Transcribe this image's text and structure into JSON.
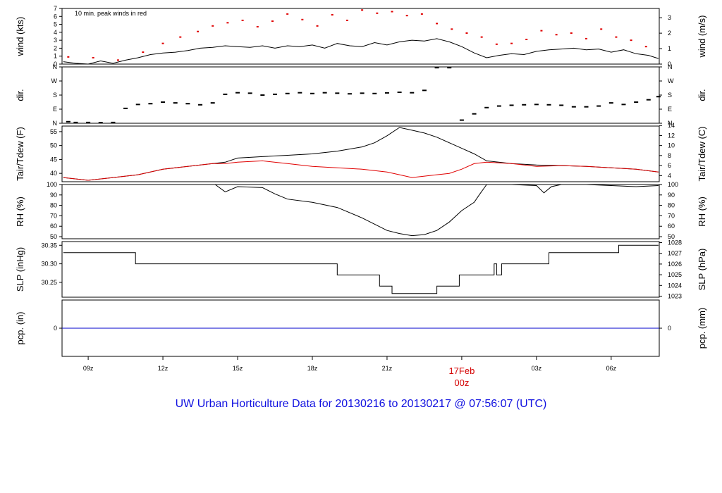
{
  "footer_title": "UW Urban Horticulture Data for 20130216  to  20130217 @ 07:56:07  (UTC)",
  "colors": {
    "line": "#000000",
    "peak": "#e00000",
    "dewpoint": "#e00000",
    "precip": "#0000cc",
    "date": "#d40000",
    "title": "#1010e0"
  },
  "x_axis": {
    "ticks": [
      {
        "label": "09z",
        "hour": 9
      },
      {
        "label": "12z",
        "hour": 12
      },
      {
        "label": "15z",
        "hour": 15
      },
      {
        "label": "18z",
        "hour": 18
      },
      {
        "label": "21z",
        "hour": 21
      },
      {
        "label": "",
        "hour": 24
      },
      {
        "label": "03z",
        "hour": 27
      },
      {
        "label": "06z",
        "hour": 30
      }
    ],
    "date_label": "17Feb",
    "date_sublabel": "00z",
    "start_hour": 7.95,
    "end_hour": 31.93
  },
  "chart_data": [
    {
      "id": "wind",
      "type": "line",
      "ylabel": "wind (kts)",
      "ylabel_right": "wind (m/s)",
      "ylim": [
        0,
        7
      ],
      "yticks": [
        0,
        1,
        2,
        3,
        4,
        5,
        6,
        7
      ],
      "right_ylim": [
        0,
        3.6
      ],
      "right_yticks": [
        0,
        1,
        2,
        3
      ],
      "annotation": "10 min. peak winds in red",
      "series": [
        {
          "name": "sustained",
          "x": [
            8.0,
            8.5,
            9.0,
            9.5,
            10.0,
            10.5,
            11.0,
            11.5,
            12.0,
            12.5,
            13.0,
            13.5,
            14.0,
            14.5,
            15.0,
            15.5,
            16.0,
            16.5,
            17.0,
            17.5,
            18.0,
            18.5,
            19.0,
            19.5,
            20.0,
            20.5,
            21.0,
            21.5,
            22.0,
            22.5,
            23.0,
            23.5,
            24.0,
            24.5,
            25.0,
            25.5,
            26.0,
            26.5,
            27.0,
            27.5,
            28.0,
            28.5,
            29.0,
            29.5,
            30.0,
            30.5,
            31.0,
            31.5,
            31.9
          ],
          "y": [
            0.3,
            0.1,
            0.0,
            0.4,
            0.1,
            0.5,
            0.8,
            1.2,
            1.4,
            1.5,
            1.7,
            2.0,
            2.1,
            2.3,
            2.2,
            2.1,
            2.3,
            2.0,
            2.3,
            2.2,
            2.4,
            2.0,
            2.6,
            2.3,
            2.2,
            2.7,
            2.4,
            2.8,
            3.0,
            2.9,
            3.2,
            2.8,
            2.2,
            1.4,
            0.8,
            1.1,
            1.3,
            1.2,
            1.6,
            1.8,
            1.9,
            2.0,
            1.8,
            1.9,
            1.5,
            1.8,
            1.3,
            1.1,
            0.7
          ]
        },
        {
          "name": "peak",
          "x": [
            8.2,
            9.2,
            10.2,
            11.2,
            12.0,
            12.7,
            13.4,
            14.0,
            14.6,
            15.2,
            15.8,
            16.4,
            17.0,
            17.6,
            18.2,
            18.8,
            19.4,
            20.0,
            20.6,
            21.2,
            21.8,
            22.4,
            23.0,
            23.6,
            24.2,
            24.8,
            25.4,
            26.0,
            26.6,
            27.2,
            27.8,
            28.4,
            29.0,
            29.6,
            30.2,
            30.8,
            31.4
          ],
          "y": [
            0.9,
            0.8,
            0.5,
            1.5,
            2.6,
            3.4,
            4.1,
            4.8,
            5.2,
            5.5,
            4.7,
            5.4,
            6.3,
            5.6,
            4.8,
            6.2,
            5.5,
            6.8,
            6.4,
            6.6,
            6.1,
            6.3,
            5.1,
            4.4,
            3.9,
            3.4,
            2.5,
            2.6,
            3.1,
            4.2,
            3.7,
            3.9,
            3.2,
            4.4,
            3.4,
            3.0,
            2.2
          ]
        }
      ]
    },
    {
      "id": "dir",
      "type": "scatter",
      "ylabel": "dir.",
      "ylabel_right": "dir.",
      "ylim": [
        0,
        360
      ],
      "ytick_labels": [
        "N",
        "E",
        "S",
        "W",
        "N"
      ],
      "ytick_values": [
        0,
        90,
        180,
        270,
        360
      ],
      "series": [
        {
          "name": "direction",
          "x": [
            8.2,
            8.5,
            9.0,
            9.5,
            10.0,
            10.5,
            11.0,
            11.5,
            12.0,
            12.5,
            13.0,
            13.5,
            14.0,
            14.5,
            15.0,
            15.5,
            16.0,
            16.5,
            17.0,
            17.5,
            18.0,
            18.5,
            19.0,
            19.5,
            20.0,
            20.5,
            21.0,
            21.5,
            22.0,
            22.5,
            23.0,
            23.5,
            24.0,
            24.5,
            25.0,
            25.5,
            26.0,
            26.5,
            27.0,
            27.5,
            28.0,
            28.5,
            29.0,
            29.5,
            30.0,
            30.5,
            31.0,
            31.5,
            31.9
          ],
          "y": [
            10,
            5,
            5,
            4,
            5,
            95,
            120,
            125,
            135,
            130,
            125,
            118,
            130,
            185,
            195,
            192,
            180,
            185,
            190,
            195,
            190,
            195,
            192,
            188,
            192,
            190,
            194,
            198,
            195,
            210,
            355,
            355,
            20,
            60,
            100,
            110,
            115,
            118,
            120,
            118,
            115,
            105,
            105,
            110,
            130,
            120,
            135,
            150,
            170
          ]
        }
      ]
    },
    {
      "id": "temp",
      "type": "line",
      "ylabel": "Tair/Tdew (F)",
      "ylabel_right": "Tair/Tdew (C)",
      "ylim": [
        37,
        57
      ],
      "yticks": [
        40,
        45,
        50,
        55
      ],
      "right_ylim": [
        2.78,
        13.89
      ],
      "right_yticks": [
        4,
        6,
        8,
        10,
        12,
        14
      ],
      "series": [
        {
          "name": "Tair",
          "x": [
            8.0,
            9.0,
            10.0,
            11.0,
            12.0,
            13.0,
            14.0,
            14.5,
            15.0,
            16.0,
            17.0,
            18.0,
            19.0,
            20.0,
            20.5,
            21.0,
            21.5,
            22.0,
            22.5,
            23.0,
            23.5,
            24.0,
            24.5,
            25.0,
            26.0,
            27.0,
            28.0,
            29.0,
            30.0,
            31.0,
            31.9
          ],
          "y": [
            38.5,
            37.5,
            38.5,
            39.5,
            41.5,
            42.5,
            43.5,
            44.0,
            45.5,
            46.0,
            46.5,
            47.0,
            48.0,
            49.5,
            51.0,
            53.5,
            56.5,
            55.5,
            54.5,
            53.0,
            51.0,
            49.0,
            47.0,
            44.5,
            43.5,
            43.0,
            42.8,
            42.5,
            42.0,
            41.5,
            40.5
          ]
        },
        {
          "name": "Tdew",
          "x": [
            8.0,
            9.0,
            10.0,
            11.0,
            12.0,
            13.0,
            14.0,
            14.5,
            15.0,
            16.0,
            17.0,
            18.0,
            19.0,
            20.0,
            20.5,
            21.0,
            21.5,
            22.0,
            22.5,
            23.0,
            23.5,
            24.0,
            24.5,
            25.0,
            26.0,
            27.0,
            28.0,
            29.0,
            30.0,
            31.0,
            31.9
          ],
          "y": [
            38.5,
            37.5,
            38.5,
            39.5,
            41.5,
            42.5,
            43.5,
            43.5,
            44.0,
            44.5,
            43.5,
            42.5,
            42.0,
            41.5,
            41.0,
            40.5,
            39.5,
            38.5,
            39.0,
            39.5,
            40.0,
            41.5,
            43.5,
            44.0,
            43.5,
            42.5,
            42.8,
            42.5,
            42.0,
            41.5,
            40.5
          ]
        }
      ]
    },
    {
      "id": "rh",
      "type": "line",
      "ylabel": "RH (%)",
      "ylabel_right": "RH (%)",
      "ylim": [
        48,
        100
      ],
      "yticks": [
        50,
        60,
        70,
        80,
        90,
        100
      ],
      "series": [
        {
          "name": "RH",
          "x": [
            14.1,
            14.5,
            15.0,
            16.0,
            16.5,
            17.0,
            18.0,
            19.0,
            20.0,
            20.5,
            21.0,
            21.5,
            22.0,
            22.5,
            23.0,
            23.5,
            24.0,
            24.5,
            24.7,
            25.0,
            26.0,
            27.0,
            27.3,
            27.6,
            28.0,
            29.0,
            30.0,
            31.0,
            31.9
          ],
          "y": [
            100,
            93,
            98,
            97,
            91,
            86,
            83,
            78,
            68,
            62,
            56,
            53,
            51,
            52,
            56,
            64,
            75,
            83,
            90,
            100,
            100,
            99,
            92,
            98,
            100,
            100,
            99,
            98,
            99
          ]
        }
      ]
    },
    {
      "id": "slp",
      "type": "line",
      "ylabel": "SLP (inHg)",
      "ylabel_right": "SLP (hPa)",
      "ylim": [
        30.21,
        30.36
      ],
      "yticks": [
        30.25,
        30.3,
        30.35
      ],
      "yticks_fmt": 2,
      "right_ylim": [
        1022.9,
        1028.1
      ],
      "right_yticks": [
        1023,
        1024,
        1025,
        1026,
        1027,
        1028
      ],
      "series": [
        {
          "name": "SLP",
          "x": [
            8.0,
            10.9,
            10.9,
            19.0,
            19.0,
            20.7,
            20.7,
            21.2,
            21.2,
            23.0,
            23.0,
            23.9,
            23.9,
            25.3,
            25.3,
            25.4,
            25.4,
            25.6,
            25.6,
            27.5,
            27.5,
            30.3,
            30.3,
            31.3,
            31.3,
            31.9
          ],
          "y": [
            30.33,
            30.33,
            30.3,
            30.3,
            30.27,
            30.27,
            30.24,
            30.24,
            30.22,
            30.22,
            30.24,
            30.24,
            30.27,
            30.27,
            30.3,
            30.3,
            30.27,
            30.27,
            30.3,
            30.3,
            30.33,
            30.33,
            30.35,
            30.35,
            30.35,
            30.35
          ]
        }
      ]
    },
    {
      "id": "pcp",
      "type": "line",
      "ylabel": "pcp. (in)",
      "ylabel_right": "pcp. (mm)",
      "ylim": [
        -1,
        1
      ],
      "yticks": [
        0
      ],
      "right_yticks_labels": [
        "0"
      ],
      "series": [
        {
          "name": "precip",
          "x": [
            7.95,
            31.93
          ],
          "y": [
            0,
            0
          ]
        }
      ]
    }
  ]
}
